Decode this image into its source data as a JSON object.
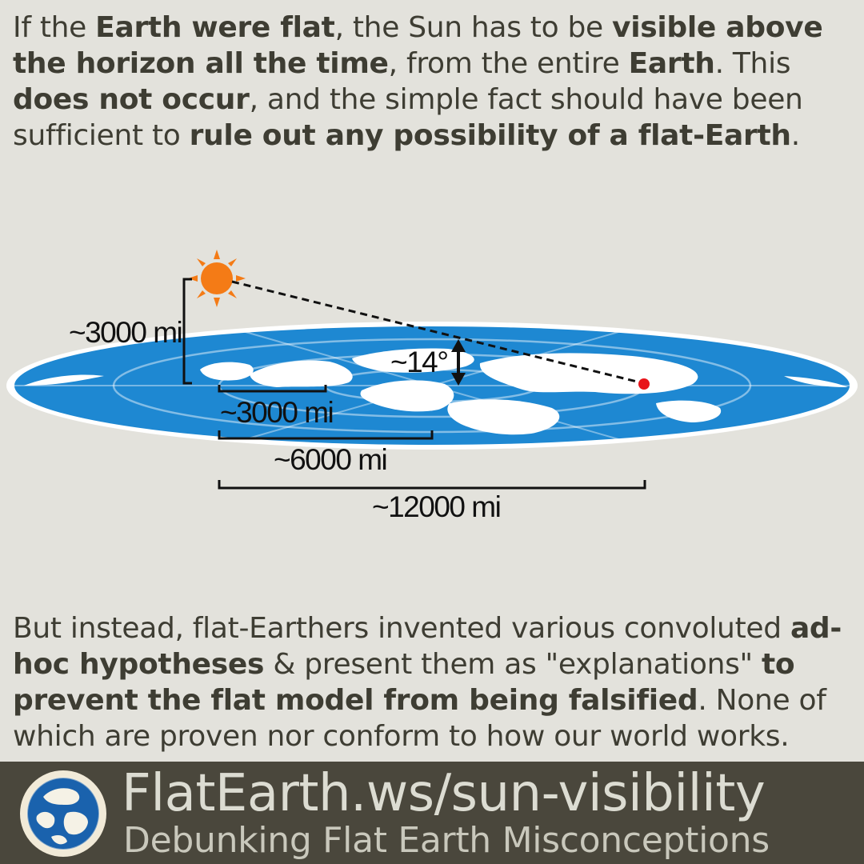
{
  "intro": {
    "p1": "If the ",
    "b1": "Earth were flat",
    "p2": ", the Sun has to be ",
    "b2": "visible above the horizon all the time",
    "p3": ", from the entire ",
    "b3": "Earth",
    "p4": ". This ",
    "b4": "does not occur",
    "p5": ", and the simple fact should have been sufficient to ",
    "b5": "rule out any possibility of a flat-Earth",
    "p6": "."
  },
  "diagram": {
    "sun_height_label": "~3000 mi",
    "angle_label": "~14°",
    "radius_labels": [
      "~3000 mi",
      "~6000 mi",
      "~12000 mi"
    ],
    "colors": {
      "ocean": "#1e88d2",
      "land": "#ffffff",
      "sun": "#f47b16",
      "observer": "#e8141a",
      "background": "#e3e2dc"
    },
    "icons": [
      "sun-icon",
      "flat-earth-map",
      "observer-dot"
    ]
  },
  "outro": {
    "p1": "But instead, flat-Earthers invented various convoluted ",
    "b1": "ad-hoc hypotheses",
    "p2": " & present them as \"explanations\" ",
    "b2": "to prevent the flat model from being falsified",
    "p3": ". None of which are proven nor conform to how our world works."
  },
  "footer": {
    "url": "FlatEarth.ws/sun-visibility",
    "tagline": "Debunking Flat Earth Misconceptions",
    "bar_color": "#4a473c"
  }
}
